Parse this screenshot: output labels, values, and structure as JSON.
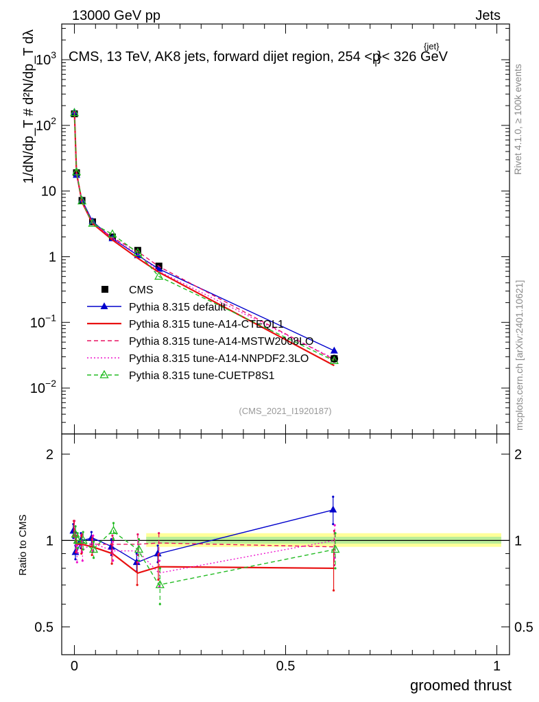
{
  "header": {
    "energy_label": "13000 GeV pp",
    "category_label": "Jets",
    "title": "CMS, 13 TeV, AK8 jets, forward dijet region, 254 <p",
    "title_sup": "{jet}",
    "title_sub": "T",
    "title_tail": "}< 326 GeV",
    "analysis_tag": "(CMS_2021_I1920187)"
  },
  "side_labels": {
    "rivet": "Rivet 4.1.0, ≥ 100k events",
    "mcplots": "mcplots.cern.ch [arXiv:2401.10621]"
  },
  "axes": {
    "ylabel_main": "1/dN/dp_T # d²N/dp_T dλ",
    "ylabel_ratio": "Ratio to CMS",
    "xlabel": "groomed thrust",
    "main_yticks": [
      {
        "value": 0.01,
        "base": "10",
        "exp": "−2"
      },
      {
        "value": 0.1,
        "base": "10",
        "exp": "−1"
      },
      {
        "value": 1,
        "base": "1",
        "exp": ""
      },
      {
        "value": 10,
        "base": "10",
        "exp": ""
      },
      {
        "value": 100,
        "base": "10",
        "exp": "2"
      },
      {
        "value": 1000,
        "base": "10",
        "exp": "3"
      }
    ],
    "ratio_yticks": [
      "0.5",
      "1",
      "2"
    ],
    "xticks": [
      "0",
      "0.5",
      "1"
    ]
  },
  "chart_data": {
    "type": "line",
    "x": [
      0.0,
      0.005,
      0.018,
      0.043,
      0.09,
      0.15,
      0.2,
      0.615
    ],
    "xlim": [
      -0.03,
      1.03
    ],
    "main_ylim": [
      0.002,
      3500
    ],
    "ratio_ylim": [
      0.4,
      2.35
    ],
    "xlabel": "groomed thrust",
    "ylabel": "1/dN/dp_T # d²N/dp_T dλ",
    "series": [
      {
        "name": "CMS",
        "style": "data",
        "color": "#000000",
        "values": [
          150,
          19,
          7.2,
          3.4,
          2.0,
          1.25,
          0.72,
          0.028
        ]
      },
      {
        "name": "Pythia 8.315 default",
        "style": "solid",
        "marker": "triangle-filled",
        "color": "#0000cc",
        "values": [
          160,
          17.5,
          7.3,
          3.45,
          1.9,
          1.05,
          0.65,
          0.037
        ],
        "ratio": [
          1.08,
          0.91,
          1.0,
          1.02,
          0.95,
          0.84,
          0.9,
          1.28
        ],
        "ratio_err": [
          0.06,
          0.05,
          0.06,
          0.05,
          0.06,
          0.06,
          0.06,
          0.14
        ]
      },
      {
        "name": "Pythia 8.315 tune-A14-CTEQL1",
        "style": "solid",
        "marker": "none",
        "color": "#e81010",
        "values": [
          165,
          19,
          6.8,
          3.2,
          1.8,
          0.95,
          0.58,
          0.022
        ],
        "ratio": [
          1.1,
          0.97,
          0.97,
          0.95,
          0.9,
          0.77,
          0.81,
          0.8
        ],
        "ratio_err": [
          0.07,
          0.06,
          0.07,
          0.06,
          0.07,
          0.07,
          0.08,
          0.13
        ]
      },
      {
        "name": "Pythia 8.315 tune-A14-MSTW2008LO",
        "style": "dashed",
        "marker": "none",
        "color": "#e81060",
        "values": [
          162,
          18.5,
          7.0,
          3.3,
          1.95,
          1.2,
          0.71,
          0.027
        ],
        "ratio": [
          1.1,
          0.98,
          0.98,
          0.97,
          0.97,
          0.97,
          0.98,
          0.95
        ],
        "ratio_err": [
          0.07,
          0.06,
          0.07,
          0.06,
          0.07,
          0.08,
          0.08,
          0.13
        ]
      },
      {
        "name": "Pythia 8.315 tune-A14-NNPDF2.3LO",
        "style": "dotted",
        "marker": "none",
        "color": "#ee10cc",
        "values": [
          158,
          18,
          6.9,
          3.3,
          1.9,
          1.1,
          0.6,
          0.028
        ],
        "ratio": [
          1.05,
          0.9,
          0.92,
          0.98,
          0.92,
          0.92,
          0.77,
          1.0
        ],
        "ratio_err": [
          0.07,
          0.06,
          0.07,
          0.06,
          0.07,
          0.08,
          0.08,
          0.13
        ]
      },
      {
        "name": "Pythia 8.315 tune-CUETP8S1",
        "style": "dashed",
        "marker": "triangle-open",
        "color": "#22bb22",
        "values": [
          155,
          19.5,
          7.0,
          3.2,
          2.2,
          1.15,
          0.5,
          0.026
        ],
        "ratio": [
          1.05,
          1.0,
          1.0,
          0.93,
          1.08,
          0.93,
          0.7,
          0.93
        ],
        "ratio_err": [
          0.07,
          0.06,
          0.07,
          0.06,
          0.07,
          0.08,
          0.1,
          0.13
        ]
      }
    ],
    "data_errors_rel": [
      0.04,
      0.04,
      0.05,
      0.05,
      0.06,
      0.07,
      0.08,
      0.07
    ],
    "legend_position": "lower-left"
  }
}
